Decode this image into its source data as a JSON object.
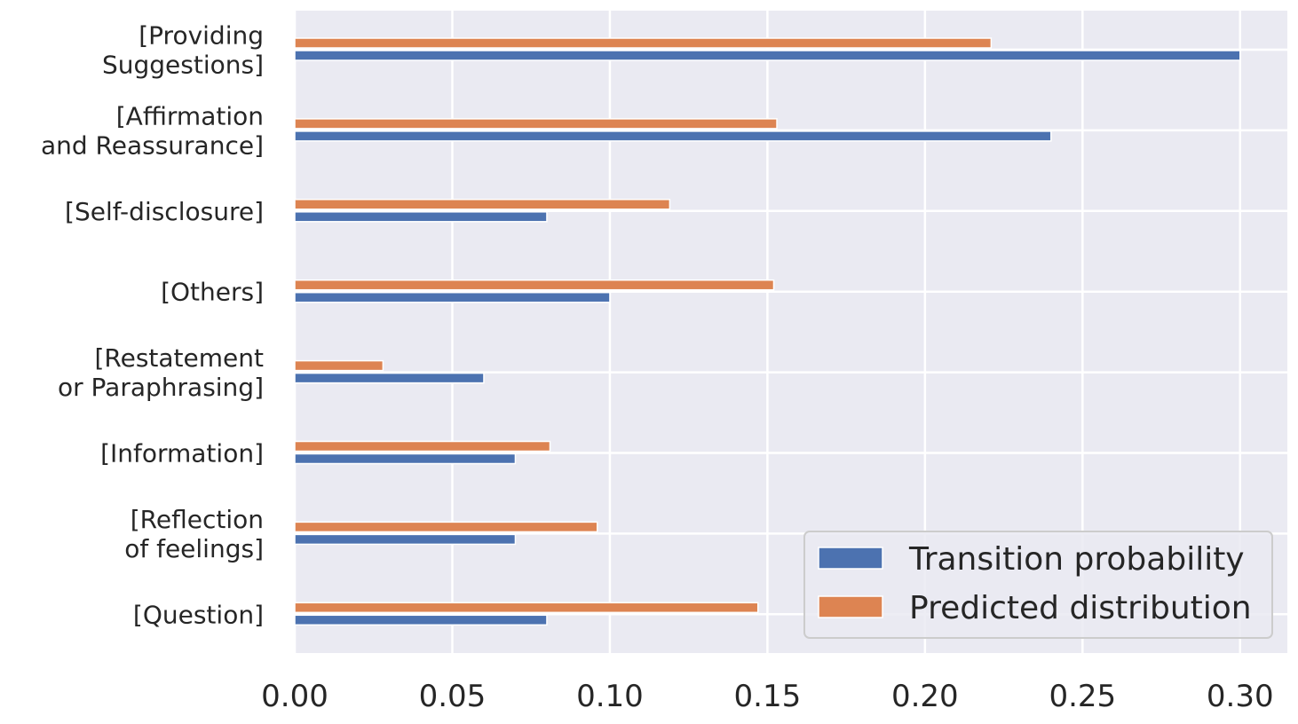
{
  "chart_data": {
    "type": "bar",
    "orientation": "horizontal",
    "categories": [
      [
        "[Providing",
        "Suggestions]"
      ],
      [
        "[Affirmation",
        "and Reassurance]"
      ],
      [
        "[Self-disclosure]"
      ],
      [
        "[Others]"
      ],
      [
        "[Restatement",
        "or Paraphrasing]"
      ],
      [
        "[Information]"
      ],
      [
        "[Reflection",
        "of feelings]"
      ],
      [
        "[Question]"
      ]
    ],
    "series": [
      {
        "name": "Transition probability",
        "color": "#4c72b0",
        "values": [
          0.3,
          0.24,
          0.08,
          0.1,
          0.06,
          0.07,
          0.07,
          0.08
        ]
      },
      {
        "name": "Predicted distribution",
        "color": "#dd8452",
        "values": [
          0.221,
          0.153,
          0.119,
          0.152,
          0.028,
          0.081,
          0.096,
          0.147
        ]
      }
    ],
    "x_ticks": [
      "0.00",
      "0.05",
      "0.10",
      "0.15",
      "0.20",
      "0.25",
      "0.30"
    ],
    "xlim": [
      0,
      0.315
    ],
    "title": "",
    "xlabel": "",
    "ylabel": "",
    "grid": true,
    "legend_position": "bottom-right",
    "background_color": "#eaeaf2"
  }
}
